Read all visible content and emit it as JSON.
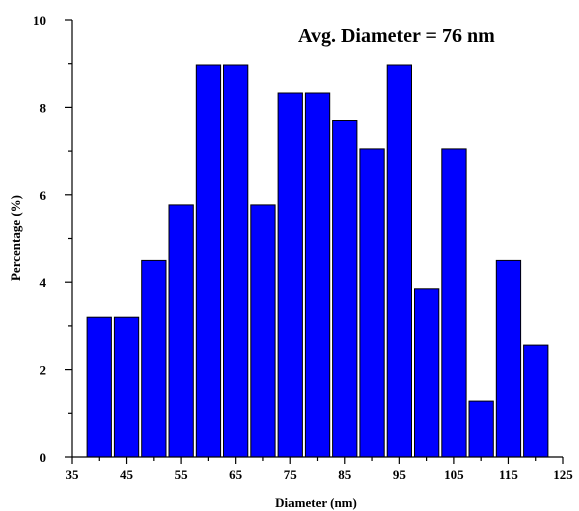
{
  "chart_data": {
    "type": "bar",
    "x": [
      40,
      45,
      50,
      55,
      60,
      65,
      70,
      75,
      80,
      85,
      90,
      95,
      100,
      105,
      110,
      115,
      120
    ],
    "values": [
      3.2,
      3.2,
      4.5,
      5.77,
      8.97,
      8.97,
      5.77,
      8.33,
      8.33,
      7.7,
      7.05,
      8.97,
      3.85,
      7.05,
      1.28,
      4.5,
      2.56
    ],
    "bin_width": 5,
    "xlabel": "Diameter (nm)",
    "ylabel": "Percentage (%)",
    "xlim": [
      35,
      125
    ],
    "ylim": [
      0,
      10
    ],
    "xticks": [
      35,
      45,
      55,
      65,
      75,
      85,
      95,
      105,
      115,
      125
    ],
    "yticks": [
      0,
      2,
      4,
      6,
      8,
      10
    ],
    "annotation": "Avg. Diameter = 76 nm",
    "grid": false,
    "bar_color": "#0000ff",
    "edge_color": "#000000"
  }
}
